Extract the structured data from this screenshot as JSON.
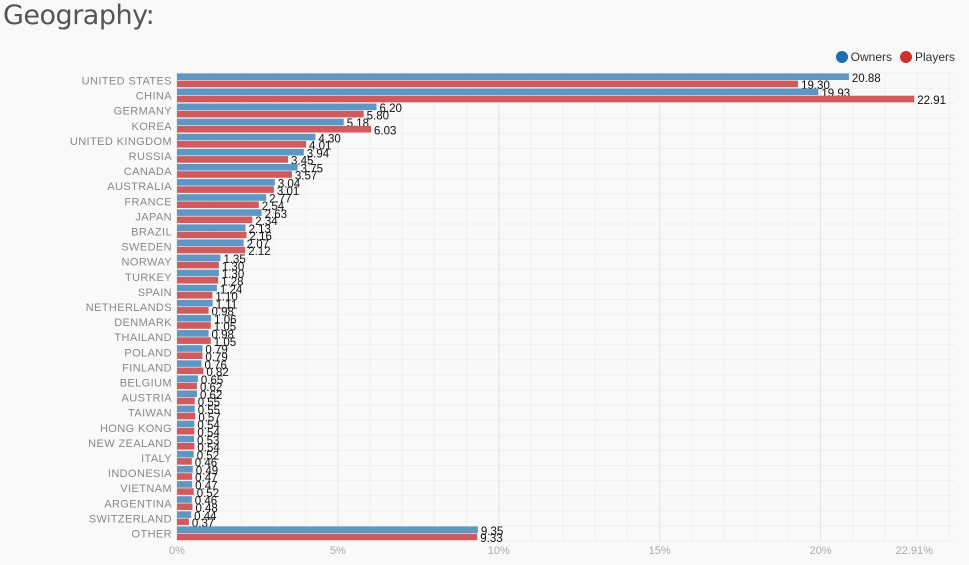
{
  "page": {
    "title": "Geography:"
  },
  "legend": [
    {
      "name": "Owners",
      "color": "#1f6fb0"
    },
    {
      "name": "Players",
      "color": "#d03030"
    }
  ],
  "chart_data": {
    "type": "bar",
    "orientation": "horizontal",
    "categories": [
      "UNITED STATES",
      "CHINA",
      "GERMANY",
      "KOREA",
      "UNITED KINGDOM",
      "RUSSIA",
      "CANADA",
      "AUSTRALIA",
      "FRANCE",
      "JAPAN",
      "BRAZIL",
      "SWEDEN",
      "NORWAY",
      "TURKEY",
      "SPAIN",
      "NETHERLANDS",
      "DENMARK",
      "THAILAND",
      "POLAND",
      "FINLAND",
      "BELGIUM",
      "AUSTRIA",
      "TAIWAN",
      "HONG KONG",
      "NEW ZEALAND",
      "ITALY",
      "INDONESIA",
      "VIETNAM",
      "ARGENTINA",
      "SWITZERLAND",
      "OTHER"
    ],
    "series": [
      {
        "name": "Owners",
        "color": "#5f97c4",
        "values": [
          20.88,
          19.93,
          6.2,
          5.18,
          4.3,
          3.94,
          3.75,
          3.04,
          2.77,
          2.63,
          2.13,
          2.07,
          1.35,
          1.3,
          1.24,
          1.11,
          1.06,
          0.98,
          0.79,
          0.76,
          0.65,
          0.62,
          0.55,
          0.54,
          0.53,
          0.52,
          0.49,
          0.47,
          0.46,
          0.44,
          9.35
        ]
      },
      {
        "name": "Players",
        "color": "#d05a5e",
        "values": [
          19.3,
          22.91,
          5.8,
          6.03,
          4.01,
          3.45,
          3.57,
          3.01,
          2.54,
          2.34,
          2.16,
          2.12,
          1.3,
          1.28,
          1.1,
          0.98,
          1.05,
          1.05,
          0.79,
          0.82,
          0.62,
          0.55,
          0.57,
          0.54,
          0.54,
          0.46,
          0.47,
          0.52,
          0.48,
          0.37,
          9.33
        ]
      }
    ],
    "xticks": [
      "0%",
      "5%",
      "10%",
      "15%",
      "20%",
      "22.91%"
    ],
    "xtick_values": [
      0,
      5,
      10,
      15,
      20,
      22.91
    ],
    "xlim": [
      0,
      24.2
    ],
    "grid": true,
    "legend_position": "top-right"
  }
}
